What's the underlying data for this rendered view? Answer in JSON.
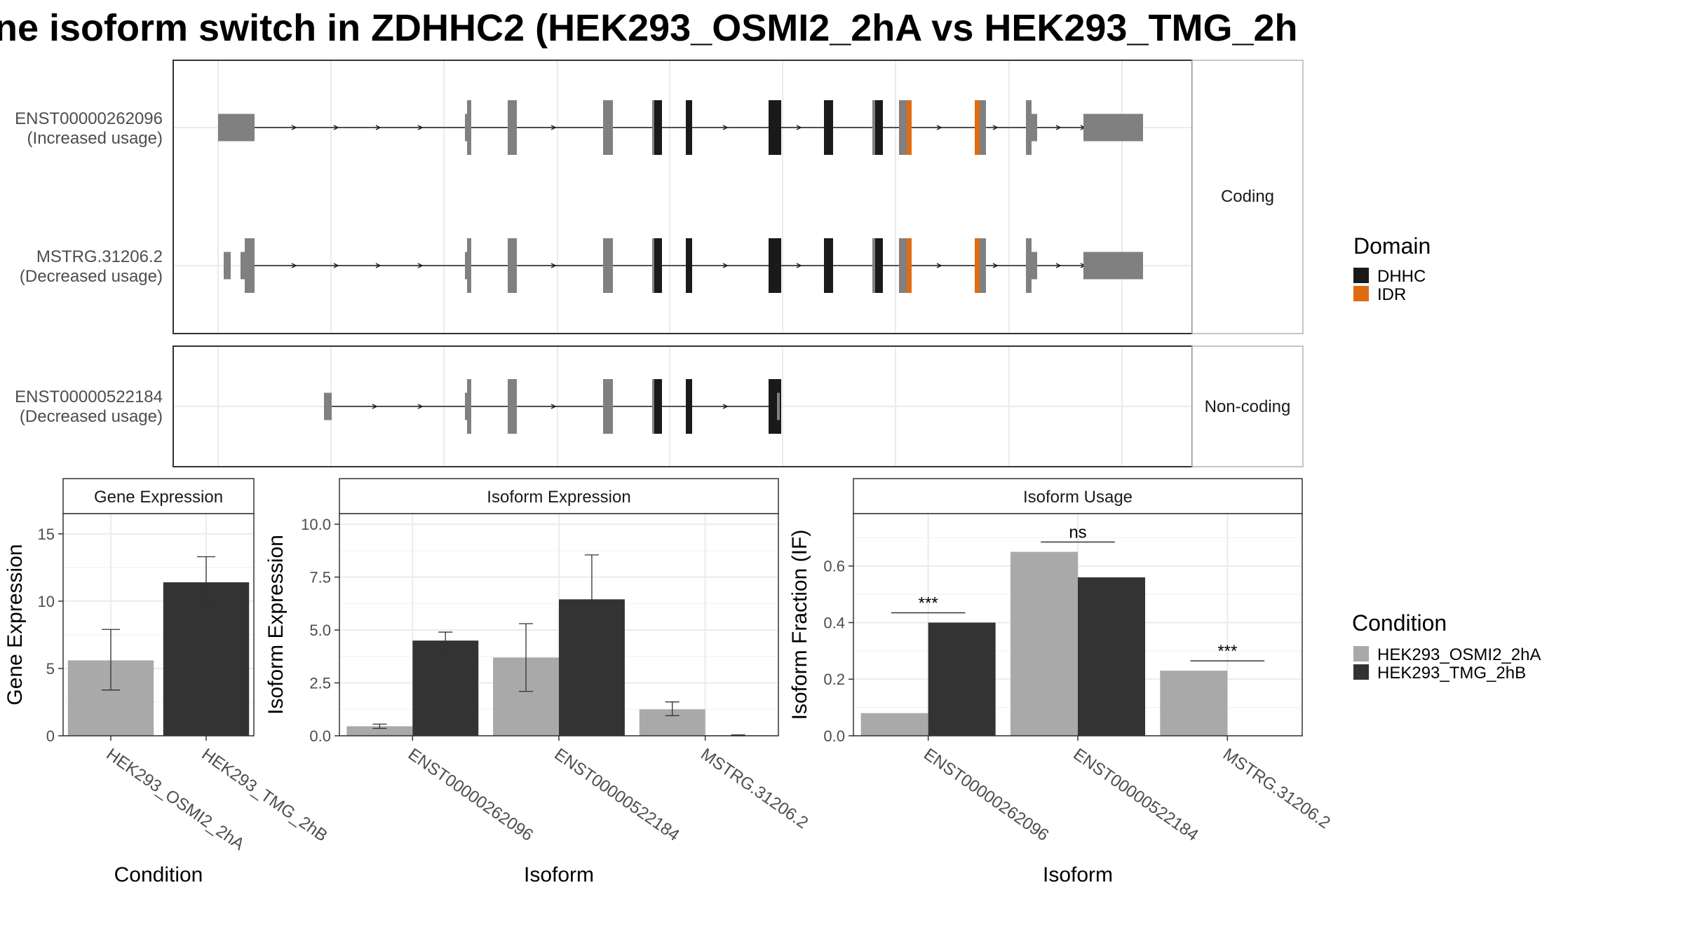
{
  "title": "ne isoform switch in ZDHHC2 (HEK293_OSMI2_2hA vs HEK293_TMG_2h",
  "colors": {
    "exon": "#808080",
    "dhhc": "#1a1a1a",
    "idr": "#e06c12",
    "osmi": "#a9a9a9",
    "tmg": "#333333",
    "grid": "#ebebeb",
    "strip_bg": "#ffffff"
  },
  "structure": {
    "coding_label": "Coding",
    "noncoding_label": "Non-coding",
    "tracks": [
      {
        "name": "ENST00000262096",
        "usage": "(Increased usage)"
      },
      {
        "name": "MSTRG.31206.2",
        "usage": "(Decreased usage)"
      },
      {
        "name": "ENST00000522184",
        "usage": "(Decreased usage)"
      }
    ]
  },
  "legends": {
    "domain": {
      "title": "Domain",
      "items": [
        {
          "label": "DHHC",
          "color": "#1a1a1a"
        },
        {
          "label": "IDR",
          "color": "#e06c12"
        }
      ]
    },
    "condition": {
      "title": "Condition",
      "items": [
        {
          "label": "HEK293_OSMI2_2hA",
          "color": "#a9a9a9"
        },
        {
          "label": "HEK293_TMG_2hB",
          "color": "#333333"
        }
      ]
    }
  },
  "chart_data": [
    {
      "type": "bar",
      "title": "Gene Expression",
      "xlabel": "Condition",
      "ylabel": "Gene Expression",
      "ylim": [
        0,
        16.5
      ],
      "yticks": [
        "0",
        "5",
        "10",
        "15"
      ],
      "categories": [
        "HEK293_OSMI2_2hA",
        "HEK293_TMG_2hB"
      ],
      "values": [
        5.6,
        11.4
      ],
      "errors": [
        [
          3.4,
          7.9
        ],
        [
          9.6,
          13.3
        ]
      ]
    },
    {
      "type": "bar",
      "title": "Isoform Expression",
      "xlabel": "Isoform",
      "ylabel": "Isoform Expression",
      "ylim": [
        0,
        10.5
      ],
      "yticks": [
        "0.0",
        "2.5",
        "5.0",
        "7.5",
        "10.0"
      ],
      "categories": [
        "ENST00000262096",
        "ENST00000522184",
        "MSTRG.31206.2"
      ],
      "series": [
        {
          "name": "HEK293_OSMI2_2hA",
          "values": [
            0.45,
            3.7,
            1.25
          ],
          "errors": [
            [
              0.35,
              0.55
            ],
            [
              2.1,
              5.3
            ],
            [
              0.95,
              1.6
            ]
          ]
        },
        {
          "name": "HEK293_TMG_2hB",
          "values": [
            4.5,
            6.45,
            0.02
          ],
          "errors": [
            [
              4.1,
              4.9
            ],
            [
              4.4,
              8.55
            ],
            [
              0.0,
              0.04
            ]
          ]
        }
      ]
    },
    {
      "type": "bar",
      "title": "Isoform Usage",
      "xlabel": "Isoform",
      "ylabel": "Isoform Fraction (IF)",
      "ylim": [
        0,
        0.785
      ],
      "yticks": [
        "0.0",
        "0.2",
        "0.4",
        "0.6"
      ],
      "categories": [
        "ENST00000262096",
        "ENST00000522184",
        "MSTRG.31206.2"
      ],
      "series": [
        {
          "name": "HEK293_OSMI2_2hA",
          "values": [
            0.08,
            0.65,
            0.23
          ]
        },
        {
          "name": "HEK293_TMG_2hB",
          "values": [
            0.4,
            0.56,
            0.0
          ]
        }
      ],
      "significance": [
        "***",
        "ns",
        "***"
      ]
    }
  ]
}
